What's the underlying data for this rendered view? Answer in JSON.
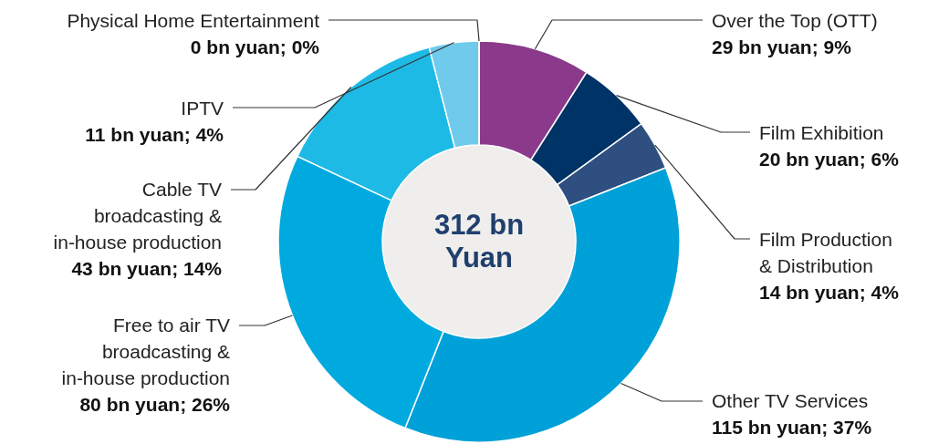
{
  "chart_data": {
    "type": "donut",
    "categories": [
      "Over the Top (OTT)",
      "Film Exhibition",
      "Film Production & Distribution",
      "Other TV Services",
      "Free to air TV broadcasting & in-house production",
      "Cable TV broadcasting & in-house production",
      "IPTV",
      "Physical Home Entertainment"
    ],
    "values": [
      9,
      6,
      4,
      37,
      26,
      14,
      4,
      0
    ],
    "colors": [
      "#8b3a8b",
      "#003366",
      "#2e4f80",
      "#00a0d8",
      "#00aadf",
      "#1ebae6",
      "#6fcaec",
      "#f0a500"
    ],
    "value_labels": [
      "29 bn yuan; 9%",
      "20 bn yuan; 6%",
      "14 bn yuan; 4%",
      "115 bn yuan; 37%",
      "80 bn yuan; 26%",
      "43 bn yuan; 14%",
      "11 bn yuan; 4%",
      "0 bn yuan; 0%"
    ],
    "annotations": [
      "312 bn Yuan"
    ]
  }
}
